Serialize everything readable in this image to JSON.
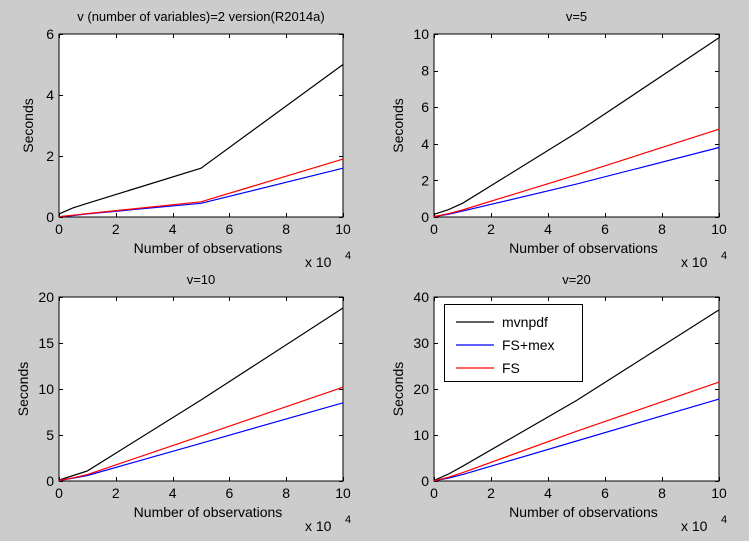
{
  "figure": {
    "background": "#cccccc",
    "axes_background": "#ffffff"
  },
  "chart_data": [
    {
      "type": "line",
      "title": "v (number of variables)=2 version(R2014a)",
      "xlabel": "Number of observations",
      "ylabel": "Seconds",
      "x_exponent_label": "x 10",
      "x_exponent_power": "4",
      "xlim": [
        0,
        10
      ],
      "ylim": [
        0,
        6
      ],
      "xticks": [
        0,
        2,
        4,
        6,
        8,
        10
      ],
      "yticks": [
        0,
        2,
        4,
        6
      ],
      "legend": null,
      "series": [
        {
          "name": "mvnpdf",
          "color": "#000000",
          "x": [
            0,
            0.5,
            1,
            5,
            10
          ],
          "values": [
            0.1,
            0.3,
            0.45,
            1.6,
            5.0
          ]
        },
        {
          "name": "FS+mex",
          "color": "#0000ff",
          "x": [
            0,
            0.5,
            1,
            5,
            10
          ],
          "values": [
            0.01,
            0.05,
            0.1,
            0.45,
            1.6
          ]
        },
        {
          "name": "FS",
          "color": "#ff0000",
          "x": [
            0,
            0.5,
            1,
            5,
            10
          ],
          "values": [
            0.01,
            0.06,
            0.11,
            0.5,
            1.9
          ]
        }
      ]
    },
    {
      "type": "line",
      "title": "v=5",
      "xlabel": "Number of observations",
      "ylabel": "Seconds",
      "x_exponent_label": "x 10",
      "x_exponent_power": "4",
      "xlim": [
        0,
        10
      ],
      "ylim": [
        0,
        10
      ],
      "xticks": [
        0,
        2,
        4,
        6,
        8,
        10
      ],
      "yticks": [
        0,
        2,
        4,
        6,
        8,
        10
      ],
      "legend": null,
      "series": [
        {
          "name": "mvnpdf",
          "color": "#000000",
          "x": [
            0,
            0.5,
            1,
            5,
            10
          ],
          "values": [
            0.15,
            0.4,
            0.75,
            4.6,
            9.8
          ]
        },
        {
          "name": "FS+mex",
          "color": "#0000ff",
          "x": [
            0,
            0.5,
            1,
            5,
            10
          ],
          "values": [
            0.02,
            0.15,
            0.32,
            1.8,
            3.8
          ]
        },
        {
          "name": "FS",
          "color": "#ff0000",
          "x": [
            0,
            0.5,
            1,
            5,
            10
          ],
          "values": [
            0.02,
            0.18,
            0.38,
            2.3,
            4.8
          ]
        }
      ]
    },
    {
      "type": "line",
      "title": "v=10",
      "xlabel": "Number of observations",
      "ylabel": "Seconds",
      "x_exponent_label": "x 10",
      "x_exponent_power": "4",
      "xlim": [
        0,
        10
      ],
      "ylim": [
        0,
        20
      ],
      "xticks": [
        0,
        2,
        4,
        6,
        8,
        10
      ],
      "yticks": [
        0,
        5,
        10,
        15,
        20
      ],
      "legend": null,
      "series": [
        {
          "name": "mvnpdf",
          "color": "#000000",
          "x": [
            0,
            0.5,
            1,
            5,
            10
          ],
          "values": [
            0.1,
            0.6,
            1.1,
            8.8,
            18.8
          ]
        },
        {
          "name": "FS+mex",
          "color": "#0000ff",
          "x": [
            0,
            0.5,
            1,
            5,
            10
          ],
          "values": [
            0.05,
            0.3,
            0.6,
            4.1,
            8.5
          ]
        },
        {
          "name": "FS",
          "color": "#ff0000",
          "x": [
            0,
            0.5,
            1,
            5,
            10
          ],
          "values": [
            0.05,
            0.35,
            0.7,
            4.9,
            10.2
          ]
        }
      ]
    },
    {
      "type": "line",
      "title": "v=20",
      "xlabel": "Number of observations",
      "ylabel": "Seconds",
      "x_exponent_label": "x 10",
      "x_exponent_power": "4",
      "xlim": [
        0,
        10
      ],
      "ylim": [
        0,
        40
      ],
      "xticks": [
        0,
        2,
        4,
        6,
        8,
        10
      ],
      "yticks": [
        0,
        10,
        20,
        30,
        40
      ],
      "legend": "top-left",
      "series": [
        {
          "name": "mvnpdf",
          "color": "#000000",
          "x": [
            0,
            0.5,
            1,
            5,
            10
          ],
          "values": [
            0.1,
            1.5,
            3.2,
            17.5,
            37.2
          ]
        },
        {
          "name": "FS+mex",
          "color": "#0000ff",
          "x": [
            0,
            0.5,
            1,
            5,
            10
          ],
          "values": [
            0.05,
            0.6,
            1.4,
            8.7,
            17.8
          ]
        },
        {
          "name": "FS",
          "color": "#ff0000",
          "x": [
            0,
            0.5,
            1,
            5,
            10
          ],
          "values": [
            0.05,
            0.8,
            1.8,
            10.8,
            21.5
          ]
        }
      ]
    }
  ]
}
